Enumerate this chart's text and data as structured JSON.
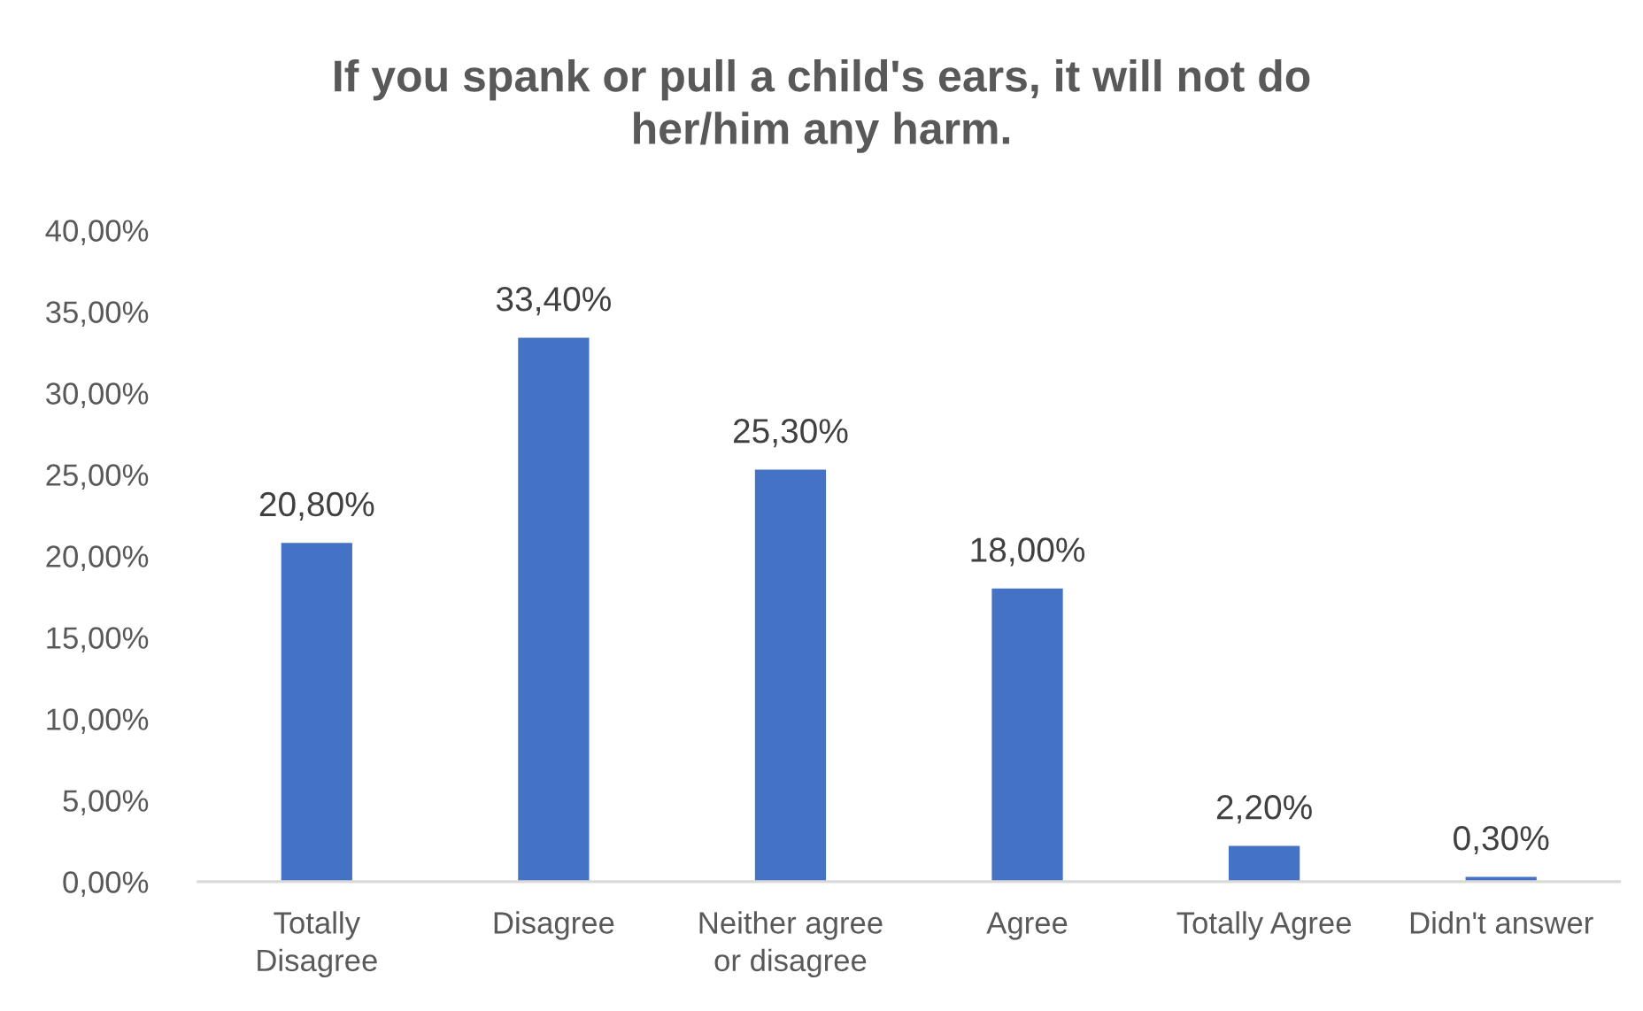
{
  "chart_data": {
    "type": "bar",
    "title": "If you spank or pull a child's ears, it will not do her/him any harm.",
    "categories": [
      "Totally Disagree",
      "Disagree",
      "Neither agree or disagree",
      "Agree",
      "Totally Agree",
      "Didn't answer"
    ],
    "values": [
      20.8,
      33.4,
      25.3,
      18.0,
      2.2,
      0.3
    ],
    "value_labels": [
      "20,80%",
      "33,40%",
      "25,30%",
      "18,00%",
      "2,20%",
      "0,30%"
    ],
    "color": "#4472c4",
    "ylim": [
      0,
      40
    ],
    "yticks": [
      {
        "value": 0,
        "label": "0,00%"
      },
      {
        "value": 5,
        "label": "5,00%"
      },
      {
        "value": 10,
        "label": "10,00%"
      },
      {
        "value": 15,
        "label": "15,00%"
      },
      {
        "value": 20,
        "label": "20,00%"
      },
      {
        "value": 25,
        "label": "25,00%"
      },
      {
        "value": 30,
        "label": "30,00%"
      },
      {
        "value": 35,
        "label": "35,00%"
      },
      {
        "value": 40,
        "label": "40,00%"
      }
    ],
    "grid": false,
    "legend": false
  }
}
